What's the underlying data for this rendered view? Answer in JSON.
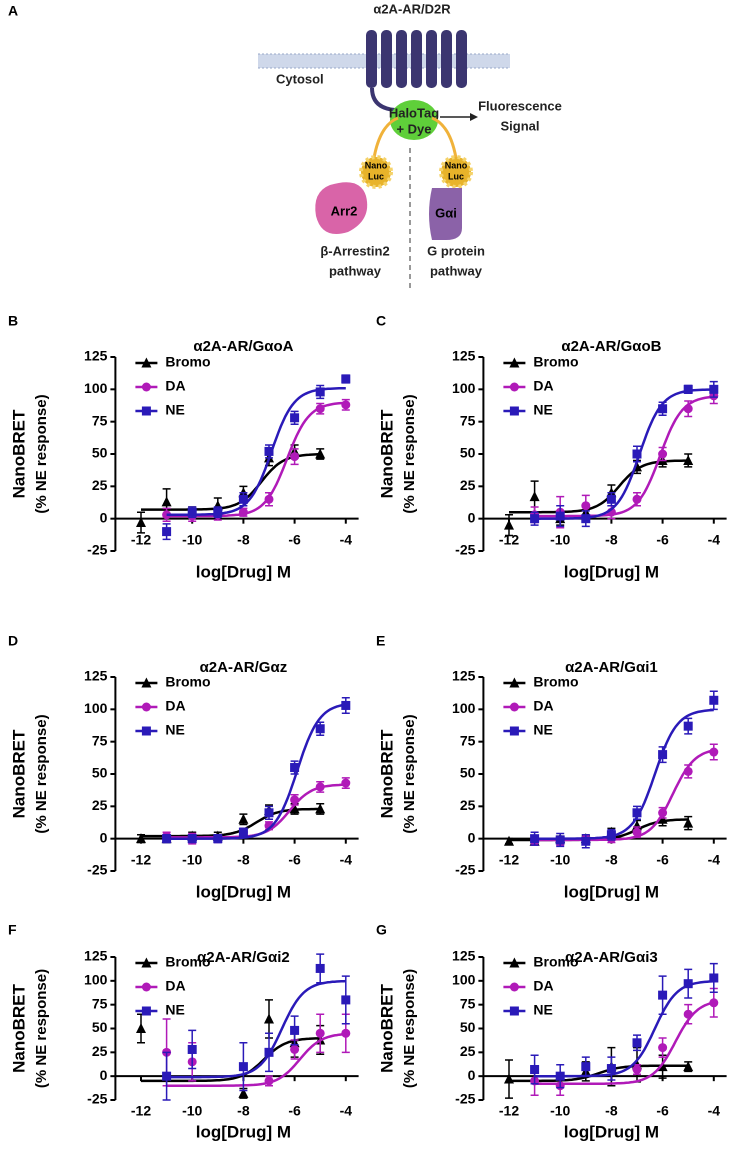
{
  "diagram": {
    "panel": "A",
    "receptor": "α2A-AR/D2R",
    "cytosol": "Cytosol",
    "halotag": [
      "HaloTag",
      "+ Dye"
    ],
    "signal": [
      "Fluorescence",
      "Signal"
    ],
    "nanoluc_left": [
      "Nano",
      "Luc"
    ],
    "nanoluc_right": [
      "Nano",
      "Luc"
    ],
    "arrestin": "Arr2",
    "gprotein": "Gαi",
    "left_pathway": [
      "β-Arrestin2",
      "pathway"
    ],
    "right_pathway": [
      "G protein",
      "pathway"
    ]
  },
  "chart_data": [
    {
      "type": "dose-response",
      "panel": "B",
      "title": "α2A-AR/GαoA",
      "xlabel": "log[Drug] M",
      "ylabel": [
        "NanoBRET",
        "(% NE response)"
      ],
      "x": [
        -12,
        -11,
        -10,
        -9,
        -8,
        -7,
        -6,
        -5,
        -4
      ],
      "xlim": [
        -13,
        -3.5
      ],
      "xticks": [
        -12,
        -10,
        -8,
        -6,
        -4
      ],
      "ylim": [
        -25,
        125
      ],
      "yticks": [
        -25,
        0,
        25,
        50,
        75,
        100,
        125
      ],
      "legend": "upper left",
      "series": [
        {
          "name": "Bromo",
          "color": "#000000",
          "marker": "triangle",
          "values": [
            -3,
            13,
            5,
            10,
            20,
            47,
            52,
            50,
            null
          ],
          "errors": [
            8,
            10,
            4,
            6,
            5,
            6,
            5,
            4,
            null
          ],
          "fit": {
            "bottom": 7,
            "top": 50,
            "logec50": -7.3
          }
        },
        {
          "name": "DA",
          "color": "#b01ab8",
          "marker": "circle",
          "values": [
            null,
            3,
            2,
            3,
            5,
            15,
            48,
            85,
            88
          ],
          "errors": [
            null,
            5,
            4,
            4,
            3,
            5,
            6,
            4,
            4
          ],
          "fit": {
            "bottom": 2,
            "top": 90,
            "logec50": -6.3
          }
        },
        {
          "name": "NE",
          "color": "#2a1ab8",
          "marker": "square",
          "values": [
            null,
            -10,
            5,
            5,
            15,
            52,
            78,
            98,
            108
          ],
          "errors": [
            null,
            6,
            4,
            4,
            5,
            5,
            5,
            5,
            3
          ],
          "fit": {
            "bottom": 3,
            "top": 101,
            "logec50": -6.9
          }
        }
      ]
    },
    {
      "type": "dose-response",
      "panel": "C",
      "title": "α2A-AR/GαoB",
      "xlabel": "log[Drug] M",
      "ylabel": [
        "NanoBRET",
        "(% NE response)"
      ],
      "x": [
        -12,
        -11,
        -10,
        -9,
        -8,
        -7,
        -6,
        -5,
        -4
      ],
      "xlim": [
        -13,
        -3.5
      ],
      "xticks": [
        -12,
        -10,
        -8,
        -6,
        -4
      ],
      "ylim": [
        -25,
        125
      ],
      "yticks": [
        -25,
        0,
        25,
        50,
        75,
        100,
        125
      ],
      "legend": "upper left",
      "series": [
        {
          "name": "Bromo",
          "color": "#000000",
          "marker": "triangle",
          "values": [
            -5,
            17,
            0,
            5,
            20,
            40,
            45,
            45,
            null
          ],
          "errors": [
            8,
            12,
            5,
            5,
            6,
            5,
            5,
            5,
            null
          ],
          "fit": {
            "bottom": 5,
            "top": 45,
            "logec50": -7.7
          }
        },
        {
          "name": "DA",
          "color": "#b01ab8",
          "marker": "circle",
          "values": [
            null,
            3,
            5,
            10,
            5,
            15,
            50,
            85,
            95
          ],
          "errors": [
            null,
            6,
            12,
            8,
            5,
            5,
            5,
            6,
            6
          ],
          "fit": {
            "bottom": 2,
            "top": 95,
            "logec50": -6.1
          }
        },
        {
          "name": "NE",
          "color": "#2a1ab8",
          "marker": "square",
          "values": [
            null,
            0,
            2,
            0,
            15,
            50,
            85,
            100,
            100
          ],
          "errors": [
            null,
            5,
            8,
            6,
            5,
            6,
            5,
            3,
            6
          ],
          "fit": {
            "bottom": 0,
            "top": 100,
            "logec50": -6.9
          }
        }
      ]
    },
    {
      "type": "dose-response",
      "panel": "D",
      "title": "α2A-AR/Gαz",
      "xlabel": "log[Drug] M",
      "ylabel": [
        "NanoBRET",
        "(% NE response)"
      ],
      "x": [
        -12,
        -11,
        -10,
        -9,
        -8,
        -7,
        -6,
        -5,
        -4
      ],
      "xlim": [
        -13,
        -3.5
      ],
      "xticks": [
        -12,
        -10,
        -8,
        -6,
        -4
      ],
      "ylim": [
        -25,
        125
      ],
      "yticks": [
        -25,
        0,
        25,
        50,
        75,
        100,
        125
      ],
      "legend": "upper left",
      "series": [
        {
          "name": "Bromo",
          "color": "#000000",
          "marker": "triangle",
          "values": [
            0,
            0,
            2,
            2,
            15,
            22,
            23,
            23,
            null
          ],
          "errors": [
            3,
            3,
            3,
            3,
            4,
            4,
            4,
            4,
            null
          ],
          "fit": {
            "bottom": 2,
            "top": 23,
            "logec50": -7.5
          }
        },
        {
          "name": "DA",
          "color": "#b01ab8",
          "marker": "circle",
          "values": [
            null,
            2,
            0,
            0,
            5,
            10,
            30,
            40,
            43
          ],
          "errors": [
            null,
            3,
            4,
            3,
            3,
            3,
            4,
            4,
            4
          ],
          "fit": {
            "bottom": 1,
            "top": 42,
            "logec50": -6.2
          }
        },
        {
          "name": "NE",
          "color": "#2a1ab8",
          "marker": "square",
          "values": [
            null,
            0,
            0,
            0,
            5,
            20,
            55,
            85,
            103
          ],
          "errors": [
            null,
            3,
            3,
            3,
            3,
            5,
            5,
            5,
            6
          ],
          "fit": {
            "bottom": 0,
            "top": 105,
            "logec50": -5.9
          }
        }
      ]
    },
    {
      "type": "dose-response",
      "panel": "E",
      "title": "α2A-AR/Gαi1",
      "xlabel": "log[Drug] M",
      "ylabel": [
        "NanoBRET",
        "(% NE response)"
      ],
      "x": [
        -12,
        -11,
        -10,
        -9,
        -8,
        -7,
        -6,
        -5,
        -4
      ],
      "xlim": [
        -13,
        -3.5
      ],
      "xticks": [
        -12,
        -10,
        -8,
        -6,
        -4
      ],
      "ylim": [
        -25,
        125
      ],
      "yticks": [
        -25,
        0,
        25,
        50,
        75,
        100,
        125
      ],
      "legend": "upper left",
      "series": [
        {
          "name": "Bromo",
          "color": "#000000",
          "marker": "triangle",
          "values": [
            -2,
            -2,
            0,
            0,
            5,
            10,
            15,
            12,
            null
          ],
          "errors": [
            2,
            2,
            2,
            2,
            3,
            4,
            5,
            5,
            null
          ],
          "fit": {
            "bottom": -1,
            "top": 15,
            "logec50": -7
          }
        },
        {
          "name": "DA",
          "color": "#b01ab8",
          "marker": "circle",
          "values": [
            null,
            -2,
            -2,
            0,
            0,
            5,
            20,
            52,
            67
          ],
          "errors": [
            null,
            3,
            3,
            3,
            3,
            4,
            4,
            5,
            6
          ],
          "fit": {
            "bottom": -1,
            "top": 70,
            "logec50": -5.6
          }
        },
        {
          "name": "NE",
          "color": "#2a1ab8",
          "marker": "square",
          "values": [
            null,
            0,
            -1,
            -2,
            3,
            20,
            65,
            87,
            107
          ],
          "errors": [
            null,
            5,
            5,
            5,
            4,
            5,
            6,
            6,
            7
          ],
          "fit": {
            "bottom": 0,
            "top": 100,
            "logec50": -6.3
          }
        }
      ]
    },
    {
      "type": "dose-response",
      "panel": "F",
      "title": "α2A-AR/Gαi2",
      "xlabel": "log[Drug] M",
      "ylabel": [
        "NanoBRET",
        "(% NE response)"
      ],
      "x": [
        -12,
        -11,
        -10,
        -9,
        -8,
        -7,
        -6,
        -5,
        -4
      ],
      "xlim": [
        -13,
        -3.5
      ],
      "xticks": [
        -12,
        -10,
        -8,
        -6,
        -4
      ],
      "ylim": [
        -25,
        125
      ],
      "yticks": [
        -25,
        0,
        25,
        50,
        75,
        100,
        125
      ],
      "legend": "upper left",
      "series": [
        {
          "name": "Bromo",
          "color": "#000000",
          "marker": "triangle",
          "values": [
            50,
            null,
            null,
            null,
            -18,
            60,
            35,
            38,
            null
          ],
          "errors": [
            15,
            null,
            null,
            null,
            5,
            20,
            15,
            15,
            null
          ],
          "fit": {
            "bottom": -5,
            "top": 40,
            "logec50": -7.2
          }
        },
        {
          "name": "DA",
          "color": "#b01ab8",
          "marker": "circle",
          "values": [
            null,
            25,
            15,
            null,
            null,
            -5,
            28,
            45,
            45
          ],
          "errors": [
            null,
            35,
            20,
            null,
            null,
            5,
            10,
            20,
            20
          ],
          "fit": {
            "bottom": -10,
            "top": 45,
            "logec50": -5.8
          }
        },
        {
          "name": "NE",
          "color": "#2a1ab8",
          "marker": "square",
          "values": [
            null,
            0,
            28,
            null,
            10,
            25,
            48,
            113,
            80
          ],
          "errors": [
            null,
            25,
            20,
            null,
            25,
            20,
            15,
            15,
            25
          ],
          "fit": {
            "bottom": -1,
            "top": 100,
            "logec50": -6.5
          }
        }
      ]
    },
    {
      "type": "dose-response",
      "panel": "G",
      "title": "α2A-AR/Gαi3",
      "xlabel": "log[Drug] M",
      "ylabel": [
        "NanoBRET",
        "(% NE response)"
      ],
      "x": [
        -12,
        -11,
        -10,
        -9,
        -8,
        -7,
        -6,
        -5,
        -4
      ],
      "xlim": [
        -13,
        -3.5
      ],
      "xticks": [
        -12,
        -10,
        -8,
        -6,
        -4
      ],
      "ylim": [
        -25,
        125
      ],
      "yticks": [
        -25,
        0,
        25,
        50,
        75,
        100,
        125
      ],
      "legend": "upper left",
      "series": [
        {
          "name": "Bromo",
          "color": "#000000",
          "marker": "triangle",
          "values": [
            -3,
            null,
            null,
            5,
            10,
            12,
            10,
            10,
            null
          ],
          "errors": [
            20,
            null,
            null,
            10,
            20,
            18,
            12,
            5,
            null
          ],
          "fit": {
            "bottom": -5,
            "top": 11,
            "logec50": -8.5
          }
        },
        {
          "name": "DA",
          "color": "#b01ab8",
          "marker": "circle",
          "values": [
            null,
            -5,
            -10,
            null,
            null,
            7,
            30,
            65,
            77
          ],
          "errors": [
            null,
            15,
            10,
            null,
            null,
            5,
            10,
            10,
            15
          ],
          "fit": {
            "bottom": -8,
            "top": 80,
            "logec50": -5.5
          }
        },
        {
          "name": "NE",
          "color": "#2a1ab8",
          "marker": "square",
          "values": [
            null,
            7,
            0,
            10,
            8,
            35,
            85,
            97,
            103
          ],
          "errors": [
            null,
            15,
            12,
            10,
            12,
            8,
            20,
            15,
            15
          ],
          "fit": {
            "bottom": 0,
            "top": 100,
            "logec50": -6.3
          }
        }
      ]
    }
  ]
}
